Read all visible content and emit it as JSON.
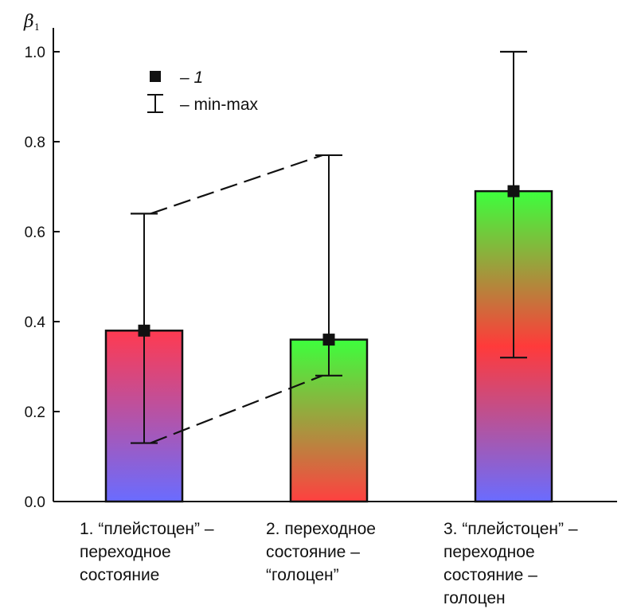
{
  "chart_data": {
    "type": "bar",
    "ylabel": "β",
    "ylabel_sub": "1",
    "ylim": [
      0,
      1.0
    ],
    "yticks": [
      "0.0",
      "0.2",
      "0.4",
      "0.6",
      "0.8",
      "1.0"
    ],
    "categories": [
      [
        "1. “плейстоцен” –",
        "переходное",
        "состояние"
      ],
      [
        "2. переходное",
        "состояние –",
        "“голоцен”"
      ],
      [
        "3. “плейстоцен” –",
        "переходное",
        "состояние –",
        "голоцен"
      ]
    ],
    "series": [
      {
        "name": "1",
        "values": [
          0.38,
          0.36,
          0.69
        ],
        "min": [
          0.13,
          0.28,
          0.32
        ],
        "max": [
          0.64,
          0.77,
          1.0
        ]
      }
    ],
    "bar_gradients": [
      [
        "#ff3a50",
        "#6a6cff"
      ],
      [
        "#3dff3d",
        "#ff4040"
      ],
      [
        "#3dff3d",
        "#ff3a3a",
        "#6a6cff"
      ]
    ],
    "dashed_connectors": [
      {
        "from": 0,
        "to": 1,
        "kind": "max"
      },
      {
        "from": 0,
        "to": 1,
        "kind": "min"
      }
    ],
    "legend": {
      "position": "top-left",
      "entries": [
        {
          "marker": "square",
          "label": "– 1"
        },
        {
          "marker": "errorbar",
          "label": "– min-max"
        }
      ]
    },
    "grid": false
  }
}
